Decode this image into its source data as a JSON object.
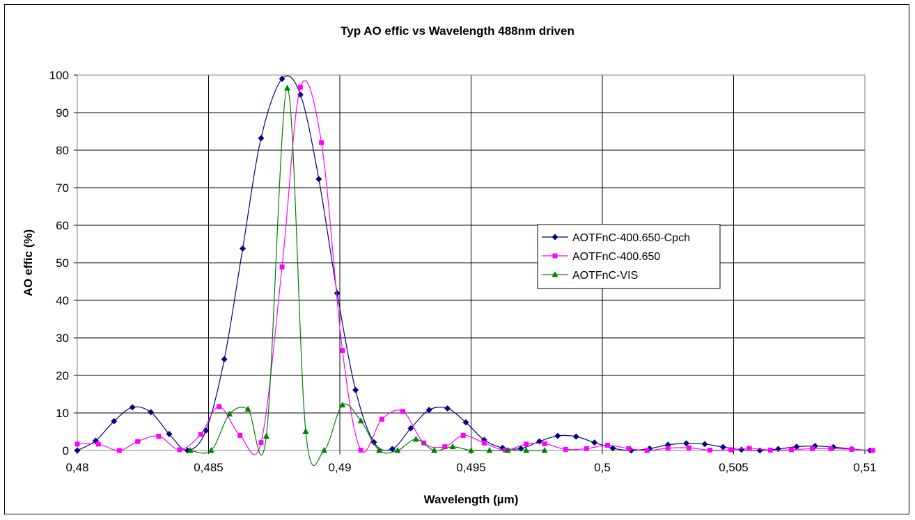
{
  "chart_data": {
    "type": "line",
    "title": "Typ AO effic vs Wavelength 488nm driven",
    "xlabel": "Wavelength (µm)",
    "ylabel": "AO effic (%)",
    "xlim": [
      0.48,
      0.51
    ],
    "ylim": [
      0,
      100
    ],
    "x_ticks": [
      "0,48",
      "0,485",
      "0,49",
      "0,495",
      "0,5",
      "0,505",
      "0,51"
    ],
    "y_ticks": [
      "0",
      "10",
      "20",
      "30",
      "40",
      "50",
      "60",
      "70",
      "80",
      "90",
      "100"
    ],
    "grid": true,
    "legend_position": "right-center",
    "series": [
      {
        "name": "AOTFnC-400.650-Cpch",
        "color": "#000080",
        "marker": "diamond",
        "x": [
          0.48,
          0.4807,
          0.4814,
          0.4821,
          0.4828,
          0.4835,
          0.4842,
          0.4849,
          0.4856,
          0.4863,
          0.487,
          0.4878,
          0.4885,
          0.4892,
          0.4899,
          0.4906,
          0.4913,
          0.492,
          0.4927,
          0.4934,
          0.4941,
          0.4948,
          0.4955,
          0.4962,
          0.4969,
          0.4976,
          0.4983,
          0.499,
          0.4997,
          0.5004,
          0.5011,
          0.5018,
          0.5025,
          0.5032,
          0.5039,
          0.5046,
          0.5053,
          0.506,
          0.5067,
          0.5074,
          0.5081,
          0.5088,
          0.5095,
          0.5102
        ],
        "y": [
          0,
          2.6,
          7.8,
          11.5,
          10.2,
          4.4,
          0,
          5.3,
          24.3,
          53.8,
          83.2,
          99,
          94.8,
          72.3,
          41.9,
          16.1,
          2.2,
          0.4,
          5.9,
          10.8,
          11.2,
          7.5,
          2.8,
          0.7,
          0.5,
          2.4,
          3.9,
          3.7,
          2.1,
          0.6,
          0,
          0.5,
          1.5,
          1.9,
          1.7,
          0.9,
          0.2,
          0,
          0.4,
          1,
          1.2,
          0.9,
          0.4,
          0
        ]
      },
      {
        "name": "AOTFnC-400.650",
        "color": "#FF00FF",
        "marker": "square",
        "x": [
          0.48,
          0.4808,
          0.4816,
          0.4823,
          0.4831,
          0.4839,
          0.4847,
          0.4854,
          0.4862,
          0.487,
          0.4878,
          0.4885,
          0.4893,
          0.4901,
          0.4908,
          0.4916,
          0.4924,
          0.4932,
          0.494,
          0.4947,
          0.4955,
          0.4963,
          0.4971,
          0.4978,
          0.4986,
          0.4994,
          0.5002,
          0.501,
          0.5017,
          0.5025,
          0.5033,
          0.5041,
          0.5049,
          0.5056,
          0.5064,
          0.5072,
          0.508,
          0.5087,
          0.5095,
          0.5103
        ],
        "y": [
          1.7,
          1.7,
          0,
          2.4,
          3.8,
          0.2,
          4.3,
          11.7,
          4,
          2.1,
          48.9,
          96.8,
          82,
          26.6,
          0.1,
          8.3,
          10.4,
          2,
          1,
          4,
          2,
          0.1,
          1.7,
          1.8,
          0.3,
          0.5,
          1.4,
          0.5,
          0,
          0.6,
          0.7,
          0.1,
          0.2,
          0.6,
          0.1,
          0.2,
          0.5,
          0.5,
          0.3,
          0
        ]
      },
      {
        "name": "AOTFnC-VIS",
        "color": "#008000",
        "marker": "triangle",
        "x": [
          0.4843,
          0.4851,
          0.4858,
          0.4865,
          0.4872,
          0.488,
          0.4887,
          0.4894,
          0.4901,
          0.4908,
          0.4915,
          0.4922,
          0.4929,
          0.4936,
          0.4943,
          0.495,
          0.4957,
          0.4964,
          0.4971,
          0.4978
        ],
        "y": [
          0,
          0,
          9.7,
          11,
          3.8,
          96.5,
          5.1,
          0,
          12.1,
          7.9,
          0,
          0,
          3,
          0,
          1,
          0,
          0,
          0,
          0,
          0
        ]
      }
    ]
  }
}
